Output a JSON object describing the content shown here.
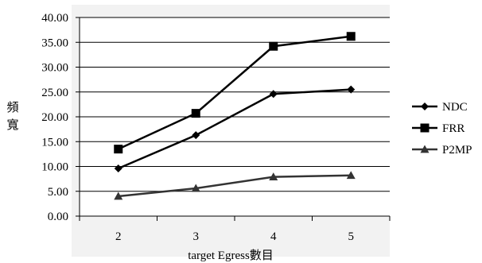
{
  "chart_data": {
    "type": "line",
    "title": "",
    "xlabel": "target Egress數目",
    "ylabel": "頻寬",
    "x": [
      "2",
      "3",
      "4",
      "5"
    ],
    "ylim": [
      0,
      40
    ],
    "yticks": [
      "0.00",
      "5.00",
      "10.00",
      "15.00",
      "20.00",
      "25.00",
      "30.00",
      "35.00",
      "40.00"
    ],
    "grid": true,
    "legend_position": "right",
    "series": [
      {
        "name": "NDC",
        "marker": "diamond",
        "color": "#000000",
        "values": [
          9.6,
          16.3,
          24.6,
          25.5
        ]
      },
      {
        "name": "FRR",
        "marker": "square",
        "color": "#000000",
        "values": [
          13.5,
          20.7,
          34.2,
          36.2
        ]
      },
      {
        "name": "P2MP",
        "marker": "triangle",
        "color": "#333333",
        "values": [
          4.0,
          5.6,
          7.9,
          8.2
        ]
      }
    ]
  }
}
